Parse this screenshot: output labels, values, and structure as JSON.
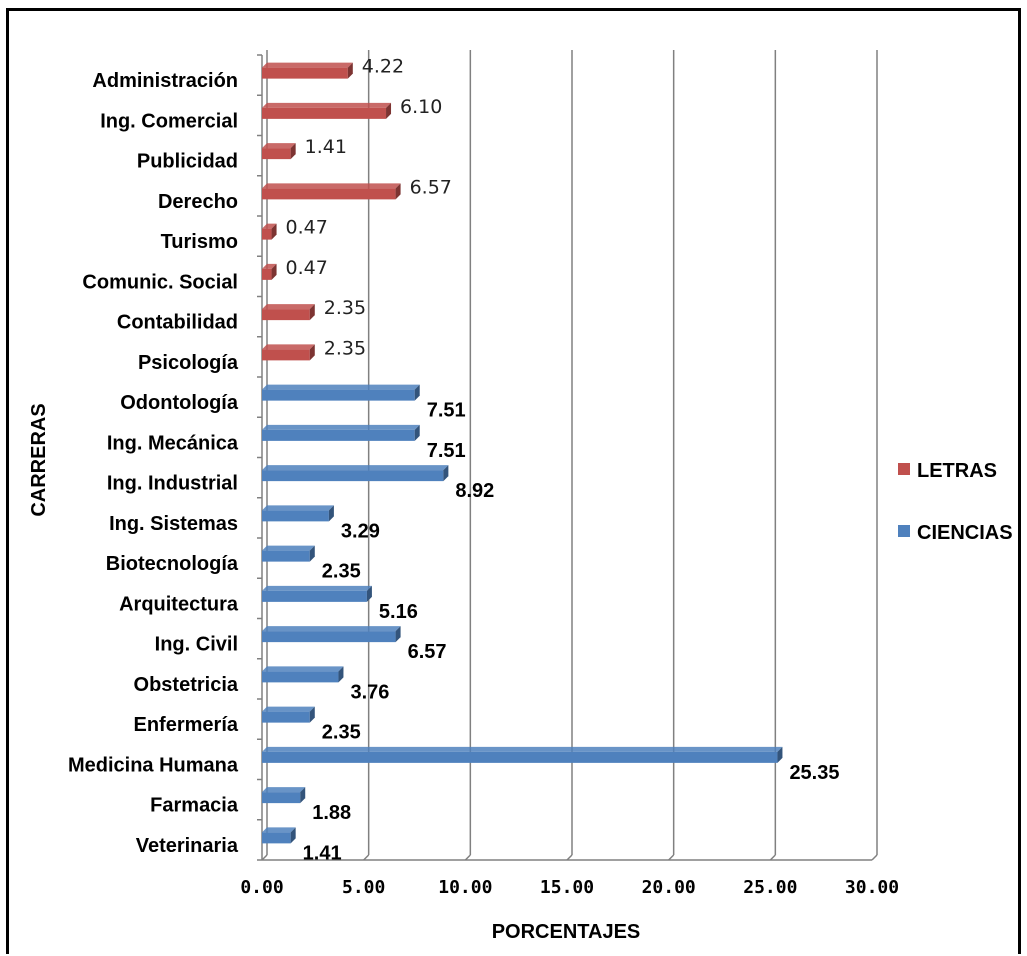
{
  "chart_data": {
    "type": "bar",
    "orientation": "horizontal",
    "xlabel": "PORCENTAJES",
    "ylabel": "CARRERAS",
    "xlim": [
      0,
      30
    ],
    "x_ticks": [
      "0.00",
      "5.00",
      "10.00",
      "15.00",
      "20.00",
      "25.00",
      "30.00"
    ],
    "grid": "vertical",
    "legend_position": "right",
    "categories": [
      "Administración",
      "Ing. Comercial",
      "Publicidad",
      "Derecho",
      "Turismo",
      "Comunic. Social",
      "Contabilidad",
      "Psicología",
      "Odontología",
      "Ing. Mecánica",
      "Ing. Industrial",
      "Ing. Sistemas",
      "Biotecnología",
      "Arquitectura",
      "Ing. Civil",
      "Obstetricia",
      "Enfermería",
      "Medicina Humana",
      "Farmacia",
      "Veterinaria"
    ],
    "series": [
      {
        "name": "LETRAS",
        "color": "#C0504D",
        "values": [
          4.22,
          6.1,
          1.41,
          6.57,
          0.47,
          0.47,
          2.35,
          2.35,
          null,
          null,
          null,
          null,
          null,
          null,
          null,
          null,
          null,
          null,
          null,
          null
        ],
        "labels": [
          "4.22",
          "6.10",
          "1.41",
          "6.57",
          "0.47",
          "0.47",
          "2.35",
          "2.35",
          null,
          null,
          null,
          null,
          null,
          null,
          null,
          null,
          null,
          null,
          null,
          null
        ]
      },
      {
        "name": "CIENCIAS",
        "color": "#4F81BD",
        "values": [
          null,
          null,
          null,
          null,
          null,
          null,
          null,
          null,
          7.51,
          7.51,
          8.92,
          3.29,
          2.35,
          5.16,
          6.57,
          3.76,
          2.35,
          25.35,
          1.88,
          1.41
        ],
        "labels": [
          null,
          null,
          null,
          null,
          null,
          null,
          null,
          null,
          "7.51",
          "7.51",
          "8.92",
          "3.29",
          "2.35",
          "5.16",
          "6.57",
          "3.76",
          "2.35",
          "25.35",
          "1.88",
          "1.41"
        ]
      }
    ]
  }
}
